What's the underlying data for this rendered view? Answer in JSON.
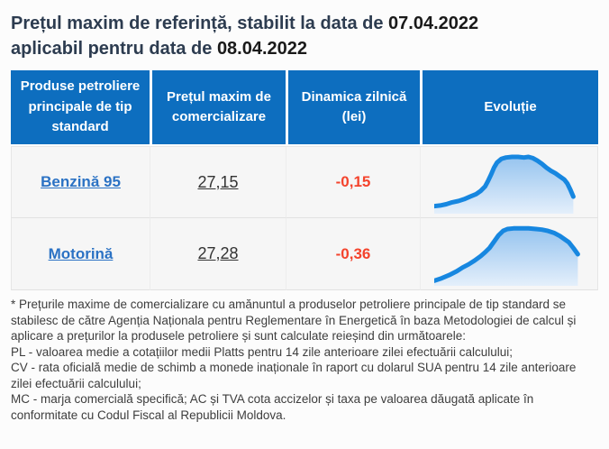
{
  "title": {
    "part1": "Prețul maxim de referință, stabilit la data de ",
    "date1": "07.04.2022",
    "part2": "aplicabil pentru data de ",
    "date2": "08.04.2022"
  },
  "table": {
    "columns": [
      "Produse petroliere principale de tip standard",
      "Prețul maxim de comercializare",
      "Dinamica zilnică (lei)",
      "Evoluție"
    ],
    "rows": [
      {
        "product": "Benzină 95",
        "price": "27,15",
        "dynamic": "-0,15",
        "evolution": {
          "type": "area",
          "points": [
            [
              0,
              88
            ],
            [
              4,
              87
            ],
            [
              8,
              85
            ],
            [
              12,
              82
            ],
            [
              16,
              80
            ],
            [
              20,
              77
            ],
            [
              24,
              73
            ],
            [
              28,
              69
            ],
            [
              31,
              64
            ],
            [
              34,
              57
            ],
            [
              36,
              48
            ],
            [
              38,
              38
            ],
            [
              40,
              27
            ],
            [
              42,
              19
            ],
            [
              45,
              13
            ],
            [
              48,
              11
            ],
            [
              52,
              10
            ],
            [
              56,
              10
            ],
            [
              60,
              11
            ],
            [
              63,
              10
            ],
            [
              66,
              12
            ],
            [
              69,
              16
            ],
            [
              72,
              21
            ],
            [
              75,
              27
            ],
            [
              78,
              32
            ],
            [
              81,
              36
            ],
            [
              84,
              41
            ],
            [
              87,
              46
            ],
            [
              89,
              52
            ],
            [
              91,
              62
            ],
            [
              93,
              73
            ]
          ]
        }
      },
      {
        "product": "Motorină",
        "price": "27,28",
        "dynamic": "-0,36",
        "evolution": {
          "type": "area",
          "points": [
            [
              0,
              92
            ],
            [
              5,
              88
            ],
            [
              10,
              83
            ],
            [
              15,
              77
            ],
            [
              19,
              71
            ],
            [
              23,
              66
            ],
            [
              27,
              60
            ],
            [
              31,
              53
            ],
            [
              34,
              47
            ],
            [
              37,
              40
            ],
            [
              40,
              30
            ],
            [
              43,
              20
            ],
            [
              46,
              13
            ],
            [
              49,
              10
            ],
            [
              53,
              9
            ],
            [
              58,
              9
            ],
            [
              63,
              9
            ],
            [
              68,
              10
            ],
            [
              72,
              11
            ],
            [
              76,
              13
            ],
            [
              80,
              16
            ],
            [
              84,
              21
            ],
            [
              87,
              26
            ],
            [
              90,
              31
            ],
            [
              93,
              40
            ],
            [
              96,
              50
            ]
          ]
        }
      }
    ]
  },
  "footnote": {
    "paragraphs": [
      "* Prețurile maxime de comercializare cu amănuntul a produselor petroliere principale de tip standard se stabilesc de către Agenția Naționala pentru Reglementare în Energetică în baza Metodologiei de calcul și aplicare a prețurilor la produsele petroliere și sunt calculate reieșind din următoarele:",
      "PL - valoarea medie a cotațiilor medii Platts pentru 14 zile anterioare zilei efectuării calculului;",
      "CV - rata oficială medie de schimb a monede inaționale în raport cu dolarul SUA pentru 14 zile anterioare zilei efectuării calculului;",
      "MC - marja comercială specifică; AC și TVA cota accizelor și taxa pe valoarea dăugată aplicate în conformitate cu Codul Fiscal al Republicii Moldova."
    ]
  },
  "colors": {
    "header_bg": "#0d6ebf",
    "link_blue": "#2b72c4",
    "negative_red": "#f4432c",
    "title_text": "#2d3c50",
    "spark_line": "#1787e0",
    "spark_fill_top": "#96c4ef",
    "spark_fill_bottom": "#e4effb"
  }
}
